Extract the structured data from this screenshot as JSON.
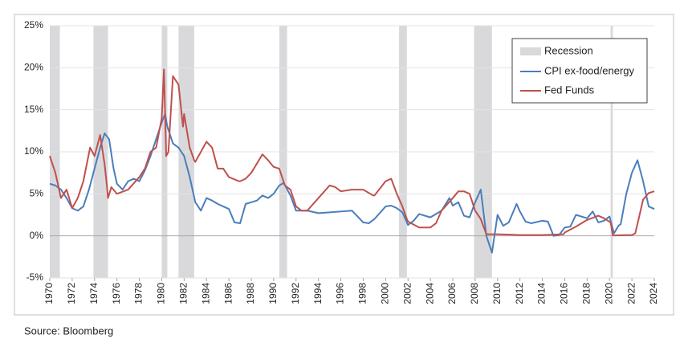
{
  "chart_data": {
    "type": "line",
    "source": "Source:  Bloomberg",
    "xlim": [
      1970,
      2024
    ],
    "xticks": [
      1970,
      1972,
      1974,
      1976,
      1978,
      1980,
      1982,
      1984,
      1986,
      1988,
      1990,
      1992,
      1994,
      1996,
      1998,
      2000,
      2002,
      2004,
      2006,
      2008,
      2010,
      2012,
      2014,
      2016,
      2018,
      2020,
      2022,
      2024
    ],
    "ylim": [
      -5,
      25
    ],
    "yticks": [
      {
        "value": -5,
        "label": "-5%"
      },
      {
        "value": 0,
        "label": "0%"
      },
      {
        "value": 5,
        "label": "5%"
      },
      {
        "value": 10,
        "label": "10%"
      },
      {
        "value": 15,
        "label": "15%"
      },
      {
        "value": 20,
        "label": "20%"
      },
      {
        "value": 25,
        "label": "25%"
      }
    ],
    "grid": true,
    "legend": "upper right",
    "recessions": {
      "name": "Recession",
      "color": "#d9d9dc",
      "periods": [
        [
          1970.0,
          1970.9
        ],
        [
          1973.9,
          1975.2
        ],
        [
          1980.0,
          1980.5
        ],
        [
          1981.5,
          1982.9
        ],
        [
          1990.5,
          1991.2
        ],
        [
          2001.2,
          2001.9
        ],
        [
          2007.9,
          2009.5
        ],
        [
          2020.1,
          2020.3
        ]
      ]
    },
    "series": [
      {
        "name": "CPI ex-food/energy",
        "color": "#4a7ebb",
        "x": [
          1970,
          1970.5,
          1971,
          1971.5,
          1972,
          1972.5,
          1973,
          1973.5,
          1974,
          1974.5,
          1974.9,
          1975.3,
          1975.7,
          1976,
          1976.5,
          1977,
          1977.5,
          1978,
          1978.5,
          1979,
          1979.5,
          1980,
          1980.3,
          1980.5,
          1981,
          1981.5,
          1982,
          1982.5,
          1983,
          1983.5,
          1984,
          1984.5,
          1985,
          1985.5,
          1986,
          1986.5,
          1987,
          1987.5,
          1988,
          1988.5,
          1989,
          1989.5,
          1990,
          1990.5,
          1990.9,
          1991.5,
          1992,
          1992.5,
          1993,
          1994,
          1995,
          1996,
          1997,
          1998,
          1998.5,
          1999,
          2000,
          2000.5,
          2001,
          2001.5,
          2002,
          2002.5,
          2003,
          2004,
          2005,
          2005.7,
          2006,
          2006.5,
          2007,
          2007.5,
          2008,
          2008.5,
          2009,
          2009.5,
          2010,
          2010.5,
          2011,
          2011.7,
          2012,
          2012.5,
          2013,
          2014,
          2014.5,
          2015,
          2015.5,
          2016,
          2016.5,
          2017,
          2018,
          2018.5,
          2019,
          2019.5,
          2020,
          2020.4,
          2020.8,
          2021,
          2021.5,
          2022,
          2022.5,
          2023,
          2023.5,
          2024
        ],
        "values": [
          6.2,
          6.0,
          5.5,
          4.5,
          3.3,
          3.0,
          3.5,
          5.5,
          8.0,
          10.5,
          12.2,
          11.5,
          8.0,
          6.2,
          5.5,
          6.5,
          6.8,
          6.5,
          7.8,
          9.5,
          11.5,
          13.5,
          14.5,
          13.0,
          11.0,
          10.5,
          9.5,
          7.0,
          4.0,
          3.0,
          4.5,
          4.2,
          3.8,
          3.5,
          3.2,
          1.6,
          1.5,
          3.8,
          4.0,
          4.2,
          4.8,
          4.5,
          5.0,
          6.0,
          6.3,
          4.8,
          3.0,
          3.0,
          3.0,
          2.7,
          2.8,
          2.9,
          3.0,
          1.6,
          1.5,
          2.0,
          3.5,
          3.6,
          3.3,
          2.8,
          1.3,
          1.8,
          2.6,
          2.2,
          3.0,
          4.5,
          3.6,
          4.0,
          2.4,
          2.2,
          4.0,
          5.5,
          0.0,
          -2.0,
          2.5,
          1.2,
          1.6,
          3.8,
          2.9,
          1.7,
          1.5,
          1.8,
          1.7,
          0.0,
          0.1,
          1.0,
          1.1,
          2.5,
          2.1,
          2.9,
          1.6,
          1.8,
          2.3,
          0.3,
          1.2,
          1.4,
          5.0,
          7.5,
          9.0,
          6.5,
          3.5,
          3.2
        ]
      },
      {
        "name": "Fed Funds",
        "color": "#c0504d",
        "x": [
          1970,
          1970.5,
          1971,
          1971.5,
          1972,
          1972.5,
          1973,
          1973.6,
          1974,
          1974.5,
          1974.9,
          1975.1,
          1975.2,
          1975.5,
          1976,
          1977,
          1978,
          1978.5,
          1979,
          1979.5,
          1980,
          1980.2,
          1980.4,
          1980.6,
          1981,
          1981.5,
          1981.9,
          1982,
          1982.5,
          1982.9,
          1983,
          1984,
          1984.5,
          1985,
          1985.5,
          1986,
          1986.9,
          1987,
          1987.5,
          1988,
          1989,
          1989.5,
          1990,
          1990.5,
          1991,
          1991.5,
          1992,
          1992.5,
          1993,
          1994,
          1995,
          1995.5,
          1996,
          1997,
          1998,
          1998.9,
          1999,
          2000,
          2000.5,
          2001,
          2001.5,
          2001.9,
          2002,
          2003,
          2004,
          2004.5,
          2005,
          2006,
          2006.5,
          2007,
          2007.5,
          2008,
          2008.5,
          2009,
          2010,
          2012,
          2014,
          2015.9,
          2016,
          2017,
          2018,
          2019,
          2019.5,
          2020.1,
          2020.3,
          2021,
          2022,
          2022.3,
          2022.6,
          2023,
          2023.5,
          2024
        ],
        "values": [
          9.5,
          7.5,
          4.5,
          5.5,
          3.3,
          4.5,
          6.5,
          10.5,
          9.5,
          12.0,
          8.5,
          6.0,
          4.5,
          5.8,
          5.0,
          5.5,
          7.0,
          8.0,
          10.0,
          10.5,
          14.0,
          19.8,
          9.5,
          10.0,
          19.0,
          18.0,
          13.0,
          14.5,
          10.5,
          9.0,
          8.8,
          11.2,
          10.5,
          8.0,
          8.0,
          7.0,
          6.5,
          6.5,
          6.8,
          7.5,
          9.7,
          9.0,
          8.2,
          8.0,
          6.0,
          5.5,
          3.5,
          3.0,
          3.0,
          4.5,
          6.0,
          5.8,
          5.3,
          5.5,
          5.5,
          4.8,
          4.8,
          6.5,
          6.8,
          5.0,
          3.5,
          2.0,
          1.7,
          1.0,
          1.0,
          1.5,
          3.0,
          4.5,
          5.3,
          5.3,
          5.0,
          3.0,
          2.0,
          0.2,
          0.2,
          0.1,
          0.1,
          0.2,
          0.4,
          1.1,
          1.9,
          2.4,
          2.1,
          1.6,
          0.05,
          0.08,
          0.1,
          0.3,
          2.0,
          4.3,
          5.1,
          5.3
        ]
      }
    ]
  }
}
